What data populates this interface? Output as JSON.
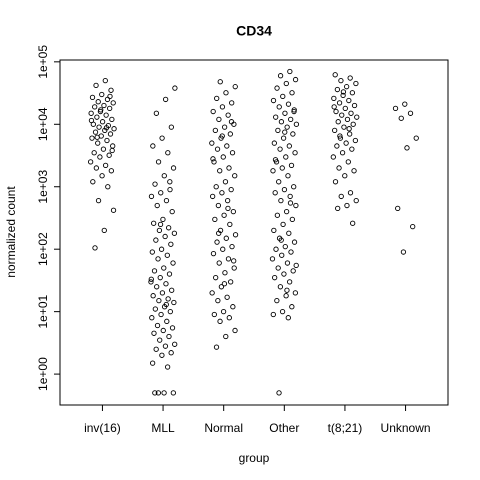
{
  "chart_data": {
    "type": "strip",
    "title": "CD34",
    "x_label": "group",
    "y_label": "normalized count",
    "categories": [
      "inv(16)",
      "MLL",
      "Normal",
      "Other",
      "t(8;21)",
      "Unknown"
    ],
    "log_y": true,
    "ylim": [
      0.32,
      107000
    ],
    "yticks": [
      {
        "value": 1,
        "label": "1e+00"
      },
      {
        "value": 10,
        "label": "1e+01"
      },
      {
        "value": 100,
        "label": "1e+02"
      },
      {
        "value": 1000,
        "label": "1e+03"
      },
      {
        "value": 10000,
        "label": "1e+04"
      },
      {
        "value": 100000,
        "label": "1e+05"
      }
    ],
    "color": "#000000",
    "values": [
      [
        50000,
        42000,
        35000,
        30000,
        27000,
        25000,
        23000,
        22000,
        20000,
        19000,
        18000,
        16000,
        15000,
        14000,
        13000,
        12000,
        11000,
        10000,
        9500,
        9000,
        8500,
        8000,
        7500,
        7000,
        6500,
        6000,
        5500,
        5000,
        4500,
        4000,
        3500,
        3200,
        3000,
        2500,
        2200,
        2000,
        1800,
        1500,
        1200,
        1000,
        600,
        420,
        200,
        105,
        28000,
        17000,
        11500,
        8800,
        6200,
        3800
      ],
      [
        38000,
        25000,
        15000,
        9000,
        6000,
        4500,
        3500,
        2500,
        2000,
        1500,
        1100,
        900,
        800,
        700,
        600,
        500,
        400,
        300,
        260,
        220,
        200,
        180,
        160,
        140,
        120,
        100,
        90,
        80,
        70,
        60,
        50,
        45,
        40,
        35,
        30,
        28,
        25,
        22,
        20,
        18,
        16,
        15,
        14,
        12,
        11,
        10,
        9,
        8,
        7,
        6,
        5.5,
        5,
        4.5,
        4,
        3.5,
        3,
        2.8,
        2.5,
        2.2,
        2,
        1.5,
        1.3,
        0.5,
        0.5,
        0.5,
        0.5,
        1200,
        250,
        33,
        13
      ],
      [
        48000,
        40000,
        32000,
        26000,
        22000,
        19000,
        16000,
        14000,
        12000,
        10000,
        9000,
        8000,
        7000,
        6000,
        5000,
        4500,
        4000,
        3500,
        3000,
        2500,
        2000,
        1800,
        1500,
        1200,
        1000,
        900,
        800,
        700,
        600,
        500,
        400,
        350,
        300,
        250,
        200,
        170,
        150,
        130,
        110,
        100,
        85,
        70,
        60,
        50,
        42,
        35,
        30,
        25,
        20,
        17,
        15,
        12,
        10,
        9,
        8,
        7,
        5,
        4,
        2.7,
        11000,
        6500,
        2800,
        450,
        180,
        65,
        28
      ],
      [
        70000,
        60000,
        52000,
        45000,
        38000,
        32000,
        28000,
        24000,
        21000,
        19000,
        17000,
        15000,
        13000,
        12000,
        11000,
        10000,
        9000,
        8000,
        7000,
        6000,
        5000,
        4500,
        4000,
        3500,
        3000,
        2500,
        2200,
        2000,
        1800,
        1500,
        1200,
        1000,
        900,
        800,
        700,
        600,
        500,
        400,
        350,
        300,
        250,
        200,
        180,
        150,
        130,
        110,
        100,
        90,
        80,
        70,
        60,
        50,
        45,
        40,
        35,
        30,
        25,
        20,
        18,
        15,
        12,
        10,
        9,
        8,
        0.5,
        16000,
        7500,
        2700,
        550,
        140,
        55,
        22
      ],
      [
        62000,
        55000,
        50000,
        45000,
        40000,
        36000,
        32000,
        29000,
        26000,
        24000,
        22000,
        20000,
        18000,
        16000,
        15000,
        14000,
        13000,
        12000,
        11000,
        10000,
        9000,
        8000,
        7000,
        6000,
        5500,
        5000,
        4500,
        4000,
        3500,
        3000,
        2500,
        2000,
        1800,
        1500,
        1200,
        800,
        700,
        600,
        500,
        450,
        260,
        33000,
        19000,
        8500,
        6500
      ],
      [
        21000,
        18000,
        15000,
        12500,
        6000,
        4200,
        450,
        230,
        90
      ]
    ]
  }
}
